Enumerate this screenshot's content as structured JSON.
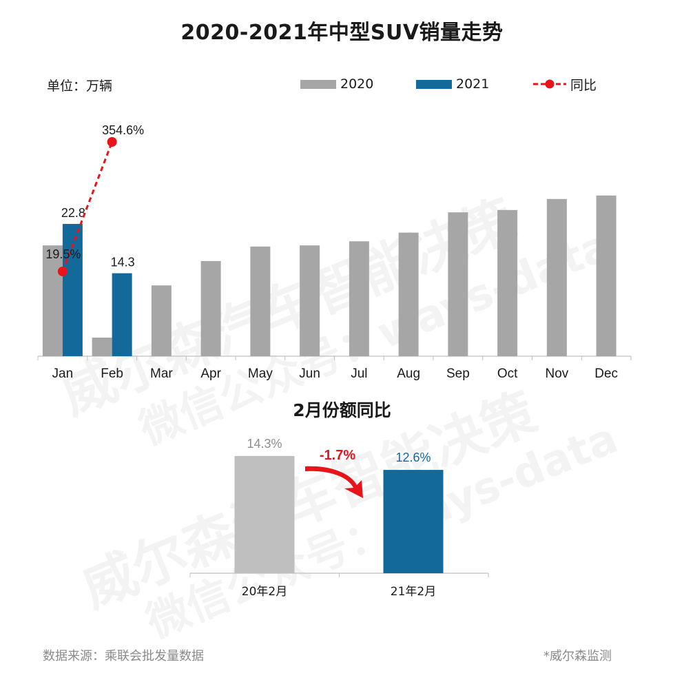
{
  "title": "2020-2021年中型SUV销量走势",
  "unit_label": "单位：万辆",
  "legend": {
    "s2020": "2020",
    "s2021": "2021",
    "yoy": "同比"
  },
  "colors": {
    "s2020": "#a6a6a6",
    "s2021": "#13699a",
    "yoy": "#e8141b",
    "share2020": "#bfbfbf",
    "share2021": "#13699a",
    "arrow": "#e8141b"
  },
  "watermark": {
    "line1": "威尔森汽车智能决策",
    "line2": "微信公众号：ways-data"
  },
  "chart_data": [
    {
      "type": "bar",
      "title": "2020-2021年中型SUV销量走势",
      "ylabel": "单位：万辆",
      "categories": [
        "Jan",
        "Feb",
        "Mar",
        "Apr",
        "May",
        "Jun",
        "Jul",
        "Aug",
        "Sep",
        "Oct",
        "Nov",
        "Dec"
      ],
      "ylim": [
        0,
        43
      ],
      "grid": false,
      "legend_position": "top-right",
      "series": [
        {
          "name": "2020",
          "values": [
            19.1,
            3.2,
            12.2,
            16.4,
            18.9,
            19.1,
            19.8,
            21.3,
            24.8,
            25.2,
            27.1,
            27.7
          ]
        },
        {
          "name": "2021",
          "values": [
            22.8,
            14.3,
            null,
            null,
            null,
            null,
            null,
            null,
            null,
            null,
            null,
            null
          ],
          "labels": [
            "22.8",
            "14.3"
          ]
        }
      ],
      "yoy": {
        "name": "同比",
        "values": [
          19.5,
          354.6
        ],
        "labels": [
          "19.5%",
          "354.6%"
        ]
      }
    },
    {
      "type": "bar",
      "title": "2月份额同比",
      "categories": [
        "20年2月",
        "21年2月"
      ],
      "values": [
        14.3,
        12.6
      ],
      "labels": [
        "14.3%",
        "12.6%"
      ],
      "ylim": [
        0,
        16
      ],
      "change": "-1.7%"
    }
  ],
  "footer": {
    "source": "数据来源：乘联会批发量数据",
    "note": "*威尔森监测"
  }
}
